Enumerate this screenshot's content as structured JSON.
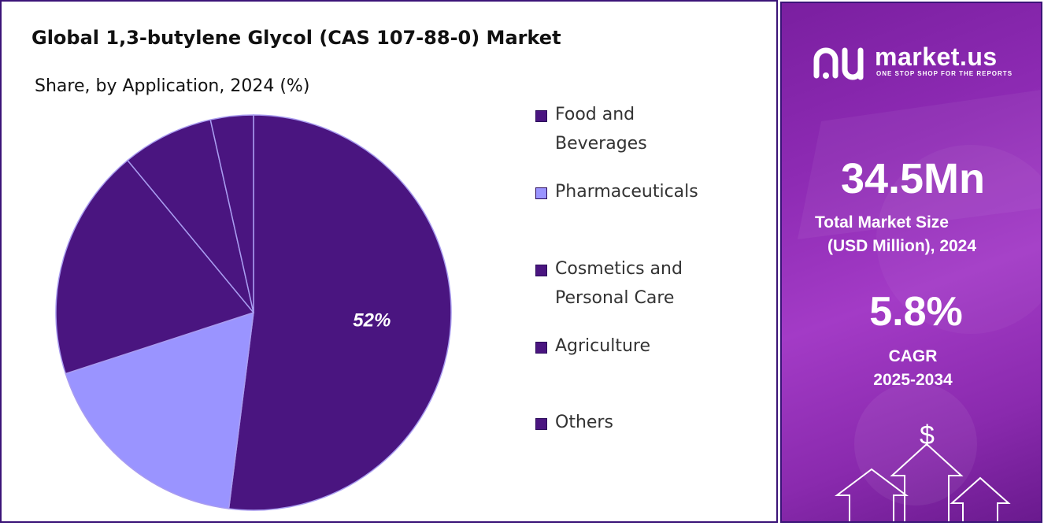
{
  "header": {
    "title": "Global 1,3-butylene Glycol (CAS 107-88-0) Market",
    "subtitle": "Share, by Application, 2024 (%)"
  },
  "chart_data": {
    "type": "pie",
    "title": "Global 1,3-butylene Glycol (CAS 107-88-0) Market",
    "subtitle": "Share, by Application, 2024 (%)",
    "slices": [
      {
        "name": "Food and Beverages",
        "value": 52,
        "label": "52%",
        "color": "#4a1580"
      },
      {
        "name": "Pharmaceuticals",
        "value": 18,
        "label": "",
        "color": "#9a94ff"
      },
      {
        "name": "Cosmetics and Personal Care",
        "value": 19,
        "label": "",
        "color": "#4a1580"
      },
      {
        "name": "Agriculture",
        "value": 7.5,
        "label": "",
        "color": "#4a1580"
      },
      {
        "name": "Others",
        "value": 3.5,
        "label": "",
        "color": "#4a1580"
      }
    ],
    "legend_placement": "right"
  },
  "legend": {
    "items": [
      {
        "label_line1": "Food and",
        "label_line2": "Beverages",
        "color": "#4a1580"
      },
      {
        "label_line1": "Pharmaceuticals",
        "label_line2": "",
        "color": "#9a94ff"
      },
      {
        "label_line1": "Cosmetics and",
        "label_line2": "Personal Care",
        "color": "#4a1580"
      },
      {
        "label_line1": "Agriculture",
        "label_line2": "",
        "color": "#4a1580"
      },
      {
        "label_line1": "Others",
        "label_line2": "",
        "color": "#4a1580"
      }
    ]
  },
  "sidebar": {
    "brand_name": "market.us",
    "brand_tagline": "ONE STOP SHOP FOR THE REPORTS",
    "market_size_value": "34.5Mn",
    "market_size_label_line1": "Total Market Size",
    "market_size_label_line2": "(USD Million), 2024",
    "cagr_value": "5.8%",
    "cagr_label_line1": "CAGR",
    "cagr_label_line2": "2025-2034",
    "currency_symbol": "$"
  }
}
